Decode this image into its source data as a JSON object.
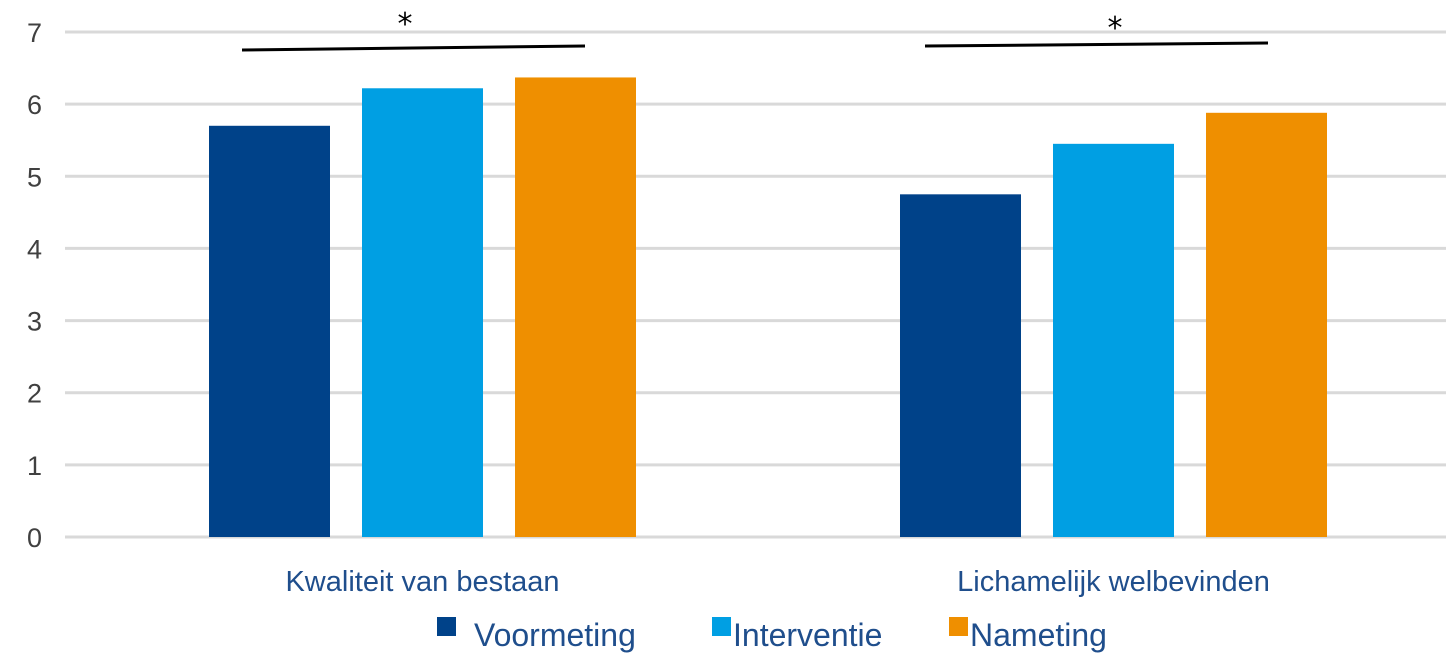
{
  "chart_data": {
    "type": "bar",
    "categories": [
      "Kwaliteit van bestaan",
      "Lichamelijk welbevinden"
    ],
    "series": [
      {
        "name": "Voormeting",
        "values": [
          5.7,
          4.75
        ],
        "color": "#004289"
      },
      {
        "name": "Interventie",
        "values": [
          6.22,
          5.45
        ],
        "color": "#009fe3"
      },
      {
        "name": "Nameting",
        "values": [
          6.37,
          5.88
        ],
        "color": "#ef8f00"
      }
    ],
    "yticks": [
      "0",
      "1",
      "2",
      "3",
      "4",
      "5",
      "6",
      "7"
    ],
    "ylim": [
      0,
      7
    ],
    "grid": true,
    "legend_position": "bottom",
    "annotations": [
      {
        "text": "*",
        "category_index": 0,
        "type": "significance-line"
      },
      {
        "text": "*",
        "category_index": 1,
        "type": "significance-line"
      }
    ]
  }
}
